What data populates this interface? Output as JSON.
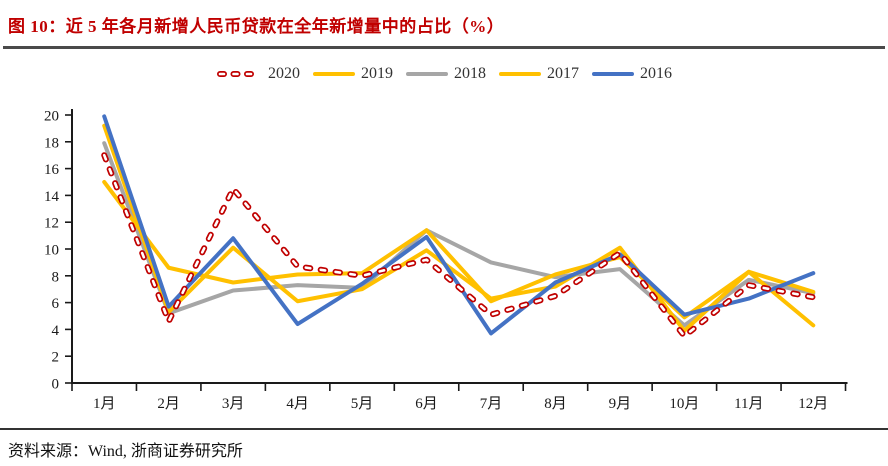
{
  "header": {
    "title": "图 10：近 5 年各月新增人民币贷款在全年新增量中的占比（%）",
    "accent_color": "#C00000"
  },
  "footer": {
    "source": "资料来源：Wind, 浙商证券研究所"
  },
  "chart_data": {
    "type": "line",
    "title": "近 5 年各月新增人民币贷款在全年新增量中的占比（%）",
    "categories": [
      "1月",
      "2月",
      "3月",
      "4月",
      "5月",
      "6月",
      "7月",
      "8月",
      "9月",
      "10月",
      "11月",
      "12月"
    ],
    "series": [
      {
        "name": "2020",
        "color": "#C00000",
        "style": "dashed-hollow",
        "values": [
          17.0,
          4.6,
          14.5,
          8.7,
          8.0,
          9.2,
          5.1,
          6.5,
          9.7,
          3.5,
          7.3,
          6.4
        ]
      },
      {
        "name": "2019",
        "color": "#FFC000",
        "style": "solid",
        "values": [
          19.2,
          5.3,
          10.1,
          6.1,
          7.0,
          9.9,
          6.3,
          7.2,
          10.1,
          3.9,
          8.3,
          6.8
        ]
      },
      {
        "name": "2018",
        "color": "#A6A6A6",
        "style": "solid",
        "values": [
          17.9,
          5.2,
          6.9,
          7.3,
          7.1,
          11.4,
          9.0,
          7.9,
          8.5,
          4.3,
          7.7,
          6.7
        ]
      },
      {
        "name": "2017",
        "color": "#FFC000",
        "style": "solid",
        "values": [
          15.0,
          8.6,
          7.5,
          8.1,
          8.2,
          11.4,
          6.1,
          8.1,
          9.4,
          4.9,
          8.3,
          4.3
        ]
      },
      {
        "name": "2016",
        "color": "#4472C4",
        "style": "solid",
        "values": [
          19.9,
          5.7,
          10.8,
          4.4,
          7.4,
          10.9,
          3.7,
          7.5,
          9.6,
          5.1,
          6.3,
          8.2
        ]
      }
    ],
    "draw_order": [
      "2018",
      "2017",
      "2019",
      "2016",
      "2020"
    ],
    "xlabel": "",
    "ylabel": "",
    "ylim": [
      0,
      20
    ],
    "ytick_step": 2,
    "grid": false,
    "legend_position": "top",
    "axis_color": "#1a1a1a"
  }
}
